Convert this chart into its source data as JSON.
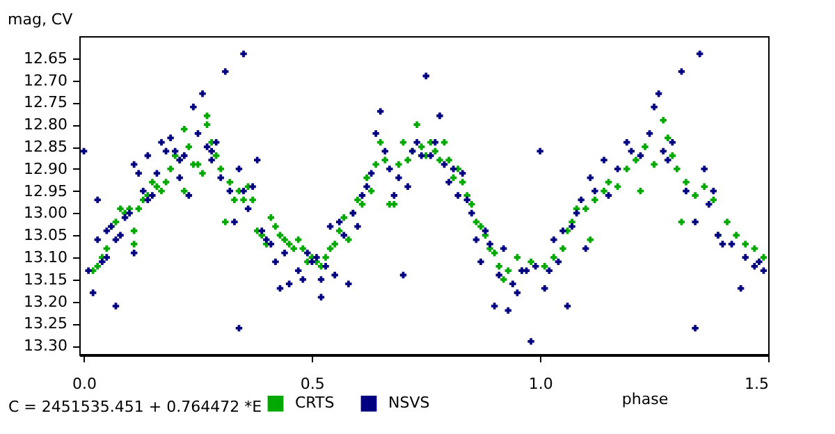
{
  "chart_data": {
    "type": "scatter",
    "xlabel": "phase",
    "ylabel": "mag, CV",
    "annotations": [
      "C = 2451535.451 + 0.764472 *E"
    ],
    "xlim": [
      -0.01,
      1.5
    ],
    "xticks": [
      {
        "value": 0,
        "label": "0.0"
      },
      0.5,
      {
        "value": 1,
        "label": "1.0"
      },
      1.5
    ],
    "ylim": [
      13.32,
      12.6
    ],
    "yticks": [
      12.65,
      {
        "value": 12.7,
        "label": "12.70"
      },
      12.75,
      {
        "value": 12.8,
        "label": "12.80"
      },
      12.85,
      {
        "value": 12.9,
        "label": "12.90"
      },
      12.95,
      {
        "value": 13,
        "label": "13.00"
      },
      13.05,
      {
        "value": 13.1,
        "label": "13.10"
      },
      13.15,
      {
        "value": 13.2,
        "label": "13.20"
      },
      13.25,
      {
        "value": 13.3,
        "label": "13.30"
      }
    ],
    "legend": "bottom",
    "marker": "cross",
    "series": [
      {
        "name": "CRTS",
        "color": "#00a800",
        "x": [
          0.02,
          0.03,
          0.04,
          0.05,
          0.06,
          0.07,
          0.08,
          0.09,
          0.1,
          0.11,
          0.11,
          0.12,
          0.13,
          0.14,
          0.15,
          0.16,
          0.17,
          0.18,
          0.19,
          0.2,
          0.21,
          0.22,
          0.22,
          0.23,
          0.24,
          0.25,
          0.26,
          0.27,
          0.27,
          0.28,
          0.29,
          0.3,
          0.31,
          0.32,
          0.33,
          0.34,
          0.35,
          0.36,
          0.37,
          0.38,
          0.39,
          0.4,
          0.41,
          0.42,
          0.43,
          0.44,
          0.45,
          0.46,
          0.47,
          0.48,
          0.49,
          0.5,
          0.51,
          0.52,
          0.53,
          0.54,
          0.55,
          0.56,
          0.57,
          0.58,
          0.59,
          0.6,
          0.61,
          0.62,
          0.63,
          0.64,
          0.65,
          0.66,
          0.67,
          0.68,
          0.69,
          0.7,
          0.71,
          0.72,
          0.73,
          0.74,
          0.75,
          0.76,
          0.77,
          0.78,
          0.79,
          0.8,
          0.81,
          0.82,
          0.83,
          0.84,
          0.85,
          0.86,
          0.87,
          0.88,
          0.89,
          0.9,
          0.91,
          0.92,
          0.93,
          0.95,
          0.96,
          0.98,
          1.01,
          1.03,
          1.05,
          1.06,
          1.07,
          1.08,
          1.1,
          1.11,
          1.12,
          1.14,
          1.15,
          1.17,
          1.19,
          1.21,
          1.22,
          1.23,
          1.25,
          1.27,
          1.28,
          1.29,
          1.3,
          1.31,
          1.32,
          1.34,
          1.36,
          1.38,
          1.39,
          1.41,
          1.43,
          1.45,
          1.47,
          1.49
        ],
        "values": [
          13.13,
          13.12,
          13.1,
          13.08,
          13.03,
          13.02,
          12.99,
          13.0,
          12.99,
          13.04,
          13.07,
          12.99,
          12.97,
          12.96,
          12.93,
          12.94,
          12.95,
          12.93,
          12.9,
          12.87,
          12.88,
          12.95,
          12.81,
          12.85,
          12.89,
          12.89,
          12.91,
          12.78,
          12.8,
          12.84,
          12.87,
          12.9,
          13.02,
          12.93,
          12.97,
          12.95,
          12.97,
          12.94,
          12.97,
          13.04,
          13.05,
          13.07,
          13.01,
          13.03,
          13.05,
          13.06,
          13.07,
          13.08,
          13.06,
          13.08,
          13.11,
          13.1,
          13.11,
          13.12,
          13.1,
          13.08,
          13.07,
          13.04,
          13.01,
          13.06,
          13.0,
          12.97,
          12.98,
          12.92,
          12.95,
          12.89,
          12.84,
          12.88,
          12.98,
          12.98,
          12.89,
          12.84,
          12.88,
          12.86,
          12.8,
          12.85,
          12.87,
          12.84,
          12.86,
          12.88,
          12.84,
          12.88,
          12.92,
          12.9,
          12.93,
          12.96,
          12.98,
          13.02,
          13.03,
          13.05,
          13.08,
          13.09,
          13.12,
          13.15,
          13.13,
          13.1,
          13.13,
          13.11,
          13.12,
          13.1,
          13.08,
          13.04,
          13.02,
          12.99,
          12.99,
          13.06,
          12.97,
          12.95,
          12.93,
          12.94,
          12.9,
          12.88,
          12.95,
          12.85,
          12.89,
          12.79,
          12.83,
          12.87,
          12.9,
          13.02,
          12.93,
          12.96,
          12.94,
          12.97,
          13.05,
          13.02,
          13.05,
          13.07,
          13.08,
          13.1
        ]
      },
      {
        "name": "NSVS",
        "color": "#000080",
        "x": [
          0.0,
          0.01,
          0.02,
          0.03,
          0.03,
          0.04,
          0.05,
          0.05,
          0.06,
          0.07,
          0.07,
          0.08,
          0.09,
          0.1,
          0.11,
          0.11,
          0.12,
          0.13,
          0.14,
          0.14,
          0.15,
          0.16,
          0.17,
          0.18,
          0.19,
          0.2,
          0.21,
          0.21,
          0.22,
          0.23,
          0.24,
          0.25,
          0.26,
          0.27,
          0.28,
          0.28,
          0.29,
          0.3,
          0.31,
          0.32,
          0.33,
          0.34,
          0.34,
          0.35,
          0.35,
          0.36,
          0.37,
          0.38,
          0.39,
          0.4,
          0.41,
          0.42,
          0.43,
          0.44,
          0.45,
          0.47,
          0.48,
          0.49,
          0.5,
          0.51,
          0.52,
          0.52,
          0.53,
          0.54,
          0.55,
          0.56,
          0.57,
          0.58,
          0.59,
          0.6,
          0.61,
          0.62,
          0.63,
          0.64,
          0.65,
          0.66,
          0.67,
          0.68,
          0.69,
          0.7,
          0.71,
          0.72,
          0.73,
          0.74,
          0.75,
          0.76,
          0.77,
          0.78,
          0.79,
          0.8,
          0.81,
          0.82,
          0.83,
          0.84,
          0.85,
          0.86,
          0.87,
          0.88,
          0.89,
          0.9,
          0.91,
          0.92,
          0.93,
          0.94,
          0.95,
          0.96,
          0.97,
          0.98,
          0.99,
          1.0,
          1.01,
          1.02,
          1.03,
          1.04,
          1.05,
          1.06,
          1.07,
          1.08,
          1.09,
          1.1,
          1.11,
          1.12,
          1.14,
          1.15,
          1.17,
          1.19,
          1.2,
          1.22,
          1.24,
          1.25,
          1.26,
          1.27,
          1.28,
          1.29,
          1.31,
          1.32,
          1.34,
          1.34,
          1.35,
          1.36,
          1.37,
          1.38,
          1.39,
          1.4,
          1.42,
          1.44,
          1.45,
          1.47,
          1.48,
          1.49
        ],
        "values": [
          12.86,
          13.13,
          13.18,
          12.97,
          13.06,
          13.11,
          13.1,
          13.04,
          13.03,
          13.21,
          13.06,
          13.05,
          13.01,
          13.0,
          12.89,
          13.09,
          12.91,
          12.95,
          12.87,
          12.97,
          12.96,
          12.91,
          12.84,
          12.86,
          12.83,
          12.86,
          12.92,
          12.88,
          12.87,
          12.96,
          12.76,
          12.82,
          12.73,
          12.85,
          12.86,
          12.88,
          12.84,
          12.92,
          12.68,
          12.95,
          13.02,
          12.9,
          13.26,
          12.95,
          12.64,
          12.99,
          12.94,
          12.88,
          13.04,
          13.06,
          13.07,
          13.11,
          13.17,
          13.09,
          13.16,
          13.13,
          13.15,
          13.09,
          13.11,
          13.1,
          13.19,
          13.15,
          13.12,
          13.03,
          13.14,
          13.02,
          13.05,
          13.16,
          13.0,
          13.03,
          12.96,
          12.94,
          12.91,
          12.82,
          12.77,
          12.86,
          12.9,
          12.96,
          12.92,
          13.14,
          12.94,
          12.86,
          12.84,
          12.87,
          12.69,
          12.87,
          12.84,
          12.78,
          12.89,
          12.93,
          12.9,
          12.96,
          12.91,
          12.97,
          13.0,
          13.06,
          13.11,
          13.04,
          13.07,
          13.21,
          13.14,
          13.08,
          13.22,
          13.16,
          13.18,
          13.13,
          13.13,
          13.29,
          13.12,
          12.86,
          13.17,
          13.13,
          13.06,
          13.11,
          13.04,
          13.21,
          13.03,
          13.0,
          12.97,
          13.08,
          12.92,
          12.95,
          12.88,
          12.96,
          12.9,
          12.84,
          12.86,
          12.87,
          12.82,
          12.76,
          12.73,
          12.86,
          12.88,
          12.84,
          12.68,
          12.95,
          13.02,
          13.26,
          12.64,
          12.9,
          12.98,
          12.95,
          13.05,
          13.07,
          13.07,
          13.17,
          13.1,
          13.12,
          13.11,
          13.13
        ]
      }
    ]
  }
}
